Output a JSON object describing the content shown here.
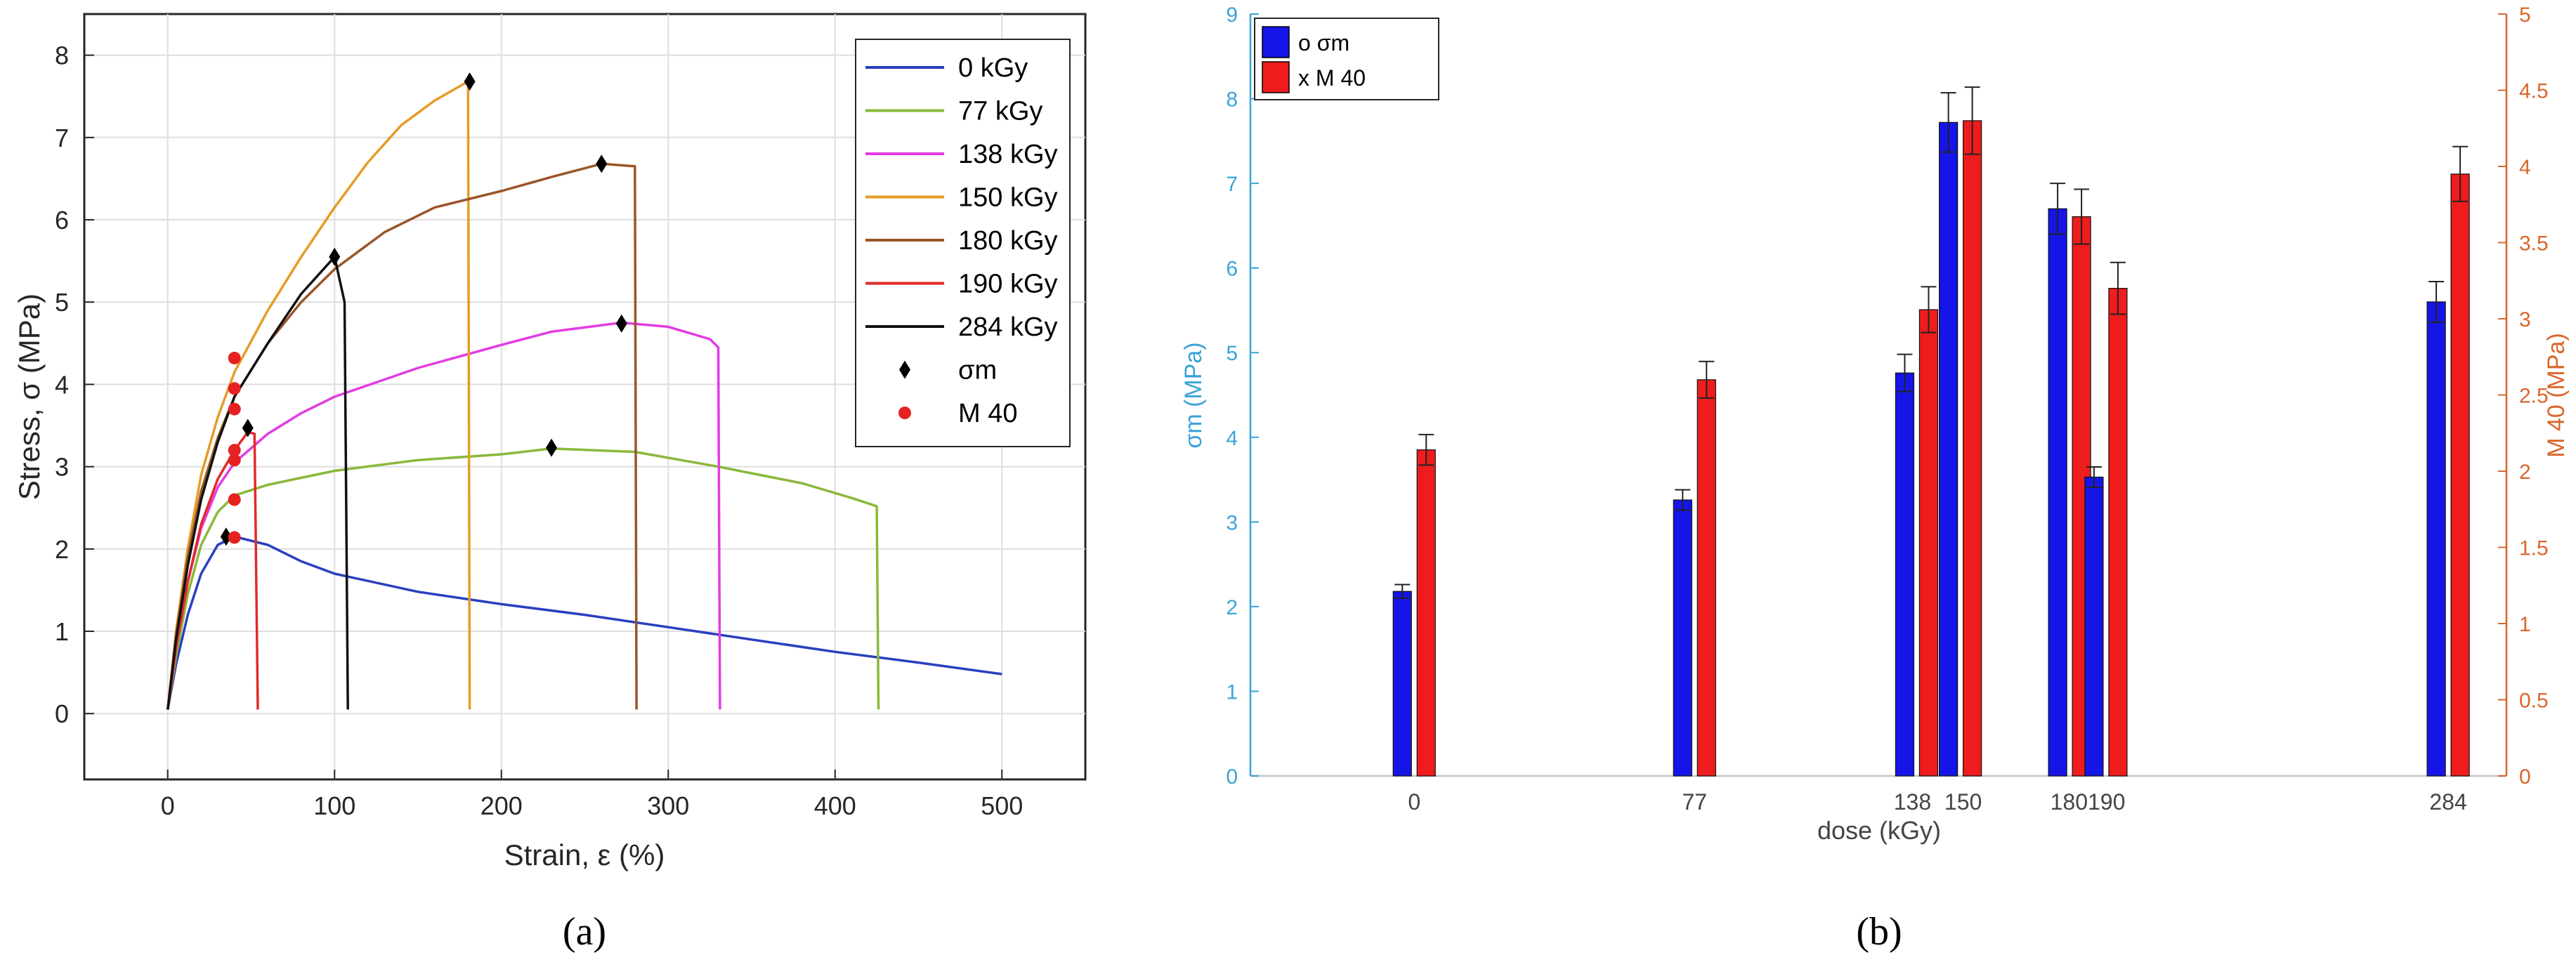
{
  "chart_data": [
    {
      "type": "line",
      "panel_label": "a",
      "xlabel": "Strain, ε (%)",
      "ylabel": "Stress, σ (MPa)",
      "xlim": [
        -50,
        550
      ],
      "ylim": [
        -0.8,
        8.5
      ],
      "xticks": [
        0,
        100,
        200,
        300,
        400,
        500
      ],
      "yticks": [
        0,
        1,
        2,
        3,
        4,
        5,
        6,
        7,
        8
      ],
      "grid": true,
      "legend_position": "top-right",
      "series": [
        {
          "name": "0 kGy",
          "color": "#2a3fbf",
          "points": [
            [
              0,
              0.05
            ],
            [
              5,
              0.6
            ],
            [
              12,
              1.2
            ],
            [
              20,
              1.7
            ],
            [
              30,
              2.05
            ],
            [
              40,
              2.15
            ],
            [
              60,
              2.05
            ],
            [
              80,
              1.85
            ],
            [
              100,
              1.7
            ],
            [
              150,
              1.48
            ],
            [
              200,
              1.33
            ],
            [
              250,
              1.2
            ],
            [
              300,
              1.05
            ],
            [
              350,
              0.9
            ],
            [
              400,
              0.75
            ],
            [
              450,
              0.62
            ],
            [
              500,
              0.48
            ]
          ]
        },
        {
          "name": "77 kGy",
          "color": "#8ab83a",
          "points": [
            [
              0,
              0.05
            ],
            [
              5,
              0.7
            ],
            [
              12,
              1.45
            ],
            [
              20,
              2.05
            ],
            [
              30,
              2.45
            ],
            [
              40,
              2.65
            ],
            [
              60,
              2.78
            ],
            [
              100,
              2.95
            ],
            [
              150,
              3.08
            ],
            [
              200,
              3.15
            ],
            [
              230,
              3.22
            ],
            [
              280,
              3.18
            ],
            [
              330,
              3.0
            ],
            [
              380,
              2.8
            ],
            [
              410,
              2.62
            ],
            [
              425,
              2.52
            ],
            [
              426,
              0.05
            ]
          ]
        },
        {
          "name": "138 kGy",
          "color": "#e33be3",
          "points": [
            [
              0,
              0.05
            ],
            [
              5,
              0.8
            ],
            [
              12,
              1.6
            ],
            [
              20,
              2.25
            ],
            [
              30,
              2.75
            ],
            [
              40,
              3.05
            ],
            [
              60,
              3.4
            ],
            [
              80,
              3.65
            ],
            [
              100,
              3.85
            ],
            [
              150,
              4.2
            ],
            [
              200,
              4.48
            ],
            [
              230,
              4.64
            ],
            [
              272,
              4.75
            ],
            [
              300,
              4.7
            ],
            [
              325,
              4.55
            ],
            [
              330,
              4.45
            ],
            [
              331,
              0.05
            ]
          ]
        },
        {
          "name": "150 kGy",
          "color": "#e59c25",
          "points": [
            [
              0,
              0.05
            ],
            [
              5,
              1.0
            ],
            [
              12,
              2.0
            ],
            [
              20,
              2.9
            ],
            [
              30,
              3.6
            ],
            [
              40,
              4.15
            ],
            [
              60,
              4.9
            ],
            [
              80,
              5.55
            ],
            [
              100,
              6.15
            ],
            [
              120,
              6.7
            ],
            [
              140,
              7.15
            ],
            [
              160,
              7.45
            ],
            [
              180,
              7.68
            ],
            [
              181,
              0.05
            ]
          ]
        },
        {
          "name": "180 kGy",
          "color": "#9a5528",
          "points": [
            [
              0,
              0.05
            ],
            [
              5,
              0.95
            ],
            [
              12,
              1.9
            ],
            [
              20,
              2.7
            ],
            [
              30,
              3.35
            ],
            [
              40,
              3.85
            ],
            [
              60,
              4.5
            ],
            [
              80,
              5.0
            ],
            [
              100,
              5.4
            ],
            [
              130,
              5.85
            ],
            [
              160,
              6.15
            ],
            [
              200,
              6.35
            ],
            [
              230,
              6.52
            ],
            [
              260,
              6.68
            ],
            [
              280,
              6.65
            ],
            [
              281,
              0.05
            ]
          ]
        },
        {
          "name": "190 kGy",
          "color": "#e12a2a",
          "points": [
            [
              0,
              0.05
            ],
            [
              5,
              0.8
            ],
            [
              12,
              1.6
            ],
            [
              20,
              2.3
            ],
            [
              30,
              2.85
            ],
            [
              40,
              3.2
            ],
            [
              48,
              3.42
            ],
            [
              52,
              3.4
            ],
            [
              54,
              0.05
            ]
          ]
        },
        {
          "name": "284 kGy",
          "color": "#111111",
          "points": [
            [
              0,
              0.05
            ],
            [
              5,
              0.9
            ],
            [
              12,
              1.8
            ],
            [
              20,
              2.6
            ],
            [
              30,
              3.3
            ],
            [
              40,
              3.85
            ],
            [
              60,
              4.5
            ],
            [
              80,
              5.1
            ],
            [
              100,
              5.55
            ],
            [
              106,
              5.0
            ],
            [
              108,
              0.05
            ]
          ]
        }
      ],
      "markers": {
        "sigma_m": {
          "name": "σm",
          "color": "#000000",
          "points": [
            [
              35,
              2.15
            ],
            [
              230,
              3.23
            ],
            [
              272,
              4.74
            ],
            [
              181,
              7.68
            ],
            [
              260,
              6.68
            ],
            [
              48,
              3.47
            ],
            [
              100,
              5.55
            ]
          ]
        },
        "m40": {
          "name": "M 40",
          "color": "#e52222",
          "points": [
            [
              40,
              2.14
            ],
            [
              40,
              2.6
            ],
            [
              40,
              3.08
            ],
            [
              40,
              3.2
            ],
            [
              40,
              3.7
            ],
            [
              40,
              3.95
            ],
            [
              40,
              4.32
            ]
          ]
        }
      },
      "legend_entries": [
        "0 kGy",
        "77 kGy",
        "138 kGy",
        "150 kGy",
        "180 kGy",
        "190 kGy",
        "284 kGy",
        "σm",
        "M 40"
      ]
    },
    {
      "type": "bar",
      "panel_label": "b",
      "xlabel": "dose (kGy)",
      "ylabel_left": "σm (MPa)",
      "ylabel_right": "M 40 (MPa)",
      "left_color": "#3ba3d6",
      "right_color": "#d9662b",
      "xlim": [
        -45,
        300
      ],
      "ylim_left": [
        0,
        9
      ],
      "ylim_right": [
        0,
        5
      ],
      "yticks_left": [
        "0",
        "1",
        "2",
        "3",
        "4",
        "5",
        "6",
        "7",
        "8",
        "9"
      ],
      "yticks_right": [
        "0",
        "0.5",
        "1",
        "1.5",
        "2",
        "2.5",
        "3",
        "3.5",
        "4",
        "4.5",
        "5"
      ],
      "categories": [
        "0",
        "77",
        "138",
        "150",
        "180",
        "190",
        "284"
      ],
      "doses": [
        0,
        77,
        138,
        150,
        180,
        190,
        284
      ],
      "xtick_labels": [
        "0",
        "77",
        "138",
        "150",
        "180190",
        "284"
      ],
      "legend_position": "top-left",
      "legend_labels": [
        "o σm",
        "x M 40"
      ],
      "series": [
        {
          "name": "σm",
          "axis": "left",
          "color": "#1515e8",
          "values": [
            2.18,
            3.26,
            4.76,
            7.72,
            6.7,
            3.53,
            5.6
          ],
          "errors": [
            0.08,
            0.12,
            0.22,
            0.35,
            0.3,
            0.12,
            0.24
          ]
        },
        {
          "name": "M 40",
          "axis": "right",
          "color": "#ee1c1c",
          "values": [
            2.14,
            2.6,
            3.06,
            4.3,
            3.67,
            3.2,
            3.95
          ],
          "errors": [
            0.1,
            0.12,
            0.15,
            0.22,
            0.18,
            0.17,
            0.18
          ]
        }
      ]
    }
  ],
  "captions": {
    "a": "(a)",
    "b": "(b)"
  }
}
